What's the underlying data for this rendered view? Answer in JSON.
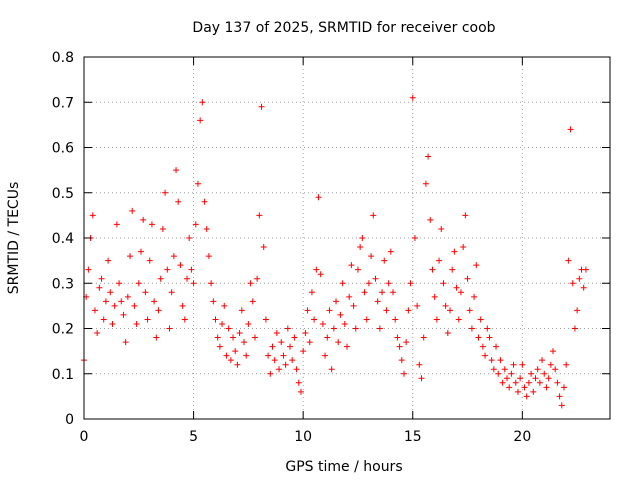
{
  "chart_data": {
    "type": "scatter",
    "title": "Day 137 of 2025, SRMTID for receiver coob",
    "xlabel": "GPS time / hours",
    "ylabel": "SRMTID / TECUs",
    "xlim": [
      0,
      24
    ],
    "ylim": [
      0,
      0.8
    ],
    "xticks": [
      0,
      5,
      10,
      15,
      20
    ],
    "xtick_labels": [
      "0",
      "5",
      "10",
      "15",
      "20"
    ],
    "yticks": [
      0,
      0.1,
      0.2,
      0.3,
      0.4,
      0.5,
      0.6,
      0.7,
      0.8
    ],
    "ytick_labels": [
      "0",
      "0.1",
      "0.2",
      "0.3",
      "0.4",
      "0.5",
      "0.6",
      "0.7",
      "0.8"
    ],
    "grid": true,
    "marker": "+",
    "color": "#ff0000",
    "series": [
      {
        "name": "SRMTID",
        "x": [
          0.0,
          0.1,
          0.2,
          0.3,
          0.4,
          0.5,
          0.6,
          0.7,
          0.8,
          0.9,
          1.0,
          1.1,
          1.2,
          1.3,
          1.4,
          1.5,
          1.6,
          1.7,
          1.8,
          1.9,
          2.0,
          2.1,
          2.2,
          2.3,
          2.4,
          2.5,
          2.6,
          2.7,
          2.8,
          2.9,
          3.0,
          3.1,
          3.2,
          3.3,
          3.4,
          3.5,
          3.6,
          3.7,
          3.8,
          3.9,
          4.0,
          4.1,
          4.2,
          4.3,
          4.4,
          4.5,
          4.6,
          4.7,
          4.8,
          4.9,
          5.0,
          5.1,
          5.2,
          5.3,
          5.4,
          5.5,
          5.6,
          5.7,
          5.8,
          5.9,
          6.0,
          6.1,
          6.2,
          6.3,
          6.4,
          6.5,
          6.6,
          6.7,
          6.8,
          6.9,
          7.0,
          7.1,
          7.2,
          7.3,
          7.4,
          7.5,
          7.6,
          7.7,
          7.8,
          7.9,
          8.0,
          8.1,
          8.2,
          8.3,
          8.4,
          8.5,
          8.6,
          8.7,
          8.8,
          8.9,
          9.0,
          9.1,
          9.2,
          9.3,
          9.4,
          9.5,
          9.6,
          9.7,
          9.8,
          9.9,
          10.0,
          10.1,
          10.2,
          10.3,
          10.4,
          10.5,
          10.6,
          10.7,
          10.8,
          10.9,
          11.0,
          11.1,
          11.2,
          11.3,
          11.4,
          11.5,
          11.6,
          11.7,
          11.8,
          11.9,
          12.0,
          12.1,
          12.2,
          12.3,
          12.4,
          12.5,
          12.6,
          12.7,
          12.8,
          12.9,
          13.0,
          13.1,
          13.2,
          13.3,
          13.4,
          13.5,
          13.6,
          13.7,
          13.8,
          13.9,
          14.0,
          14.1,
          14.2,
          14.3,
          14.4,
          14.5,
          14.6,
          14.7,
          14.8,
          14.9,
          15.0,
          15.1,
          15.2,
          15.3,
          15.4,
          15.5,
          15.6,
          15.7,
          15.8,
          15.9,
          16.0,
          16.1,
          16.2,
          16.3,
          16.4,
          16.5,
          16.6,
          16.7,
          16.8,
          16.9,
          17.0,
          17.1,
          17.2,
          17.3,
          17.4,
          17.5,
          17.6,
          17.7,
          17.8,
          17.9,
          18.0,
          18.1,
          18.2,
          18.3,
          18.4,
          18.5,
          18.6,
          18.7,
          18.8,
          18.9,
          19.0,
          19.1,
          19.2,
          19.3,
          19.4,
          19.5,
          19.6,
          19.7,
          19.8,
          19.9,
          20.0,
          20.1,
          20.2,
          20.3,
          20.4,
          20.5,
          20.6,
          20.7,
          20.8,
          20.9,
          21.0,
          21.1,
          21.2,
          21.3,
          21.4,
          21.5,
          21.6,
          21.7,
          21.8,
          21.9,
          22.0,
          22.1,
          22.2,
          22.3,
          22.4,
          22.5,
          22.6,
          22.7,
          22.8,
          22.9
        ],
        "y": [
          0.13,
          0.27,
          0.33,
          0.4,
          0.45,
          0.24,
          0.19,
          0.29,
          0.31,
          0.22,
          0.26,
          0.35,
          0.28,
          0.21,
          0.25,
          0.43,
          0.3,
          0.26,
          0.23,
          0.17,
          0.27,
          0.36,
          0.46,
          0.25,
          0.21,
          0.3,
          0.37,
          0.44,
          0.28,
          0.22,
          0.35,
          0.43,
          0.26,
          0.18,
          0.24,
          0.31,
          0.42,
          0.5,
          0.33,
          0.2,
          0.28,
          0.36,
          0.55,
          0.48,
          0.34,
          0.25,
          0.22,
          0.31,
          0.4,
          0.33,
          0.3,
          0.43,
          0.52,
          0.66,
          0.7,
          0.48,
          0.42,
          0.36,
          0.3,
          0.26,
          0.22,
          0.18,
          0.16,
          0.21,
          0.25,
          0.14,
          0.2,
          0.13,
          0.18,
          0.15,
          0.12,
          0.19,
          0.24,
          0.17,
          0.14,
          0.21,
          0.3,
          0.26,
          0.18,
          0.31,
          0.45,
          0.69,
          0.38,
          0.22,
          0.14,
          0.1,
          0.16,
          0.13,
          0.19,
          0.11,
          0.17,
          0.14,
          0.12,
          0.2,
          0.16,
          0.13,
          0.18,
          0.11,
          0.08,
          0.06,
          0.15,
          0.19,
          0.24,
          0.17,
          0.28,
          0.22,
          0.33,
          0.49,
          0.32,
          0.21,
          0.14,
          0.18,
          0.24,
          0.11,
          0.2,
          0.26,
          0.17,
          0.23,
          0.3,
          0.21,
          0.16,
          0.27,
          0.34,
          0.25,
          0.2,
          0.33,
          0.38,
          0.4,
          0.28,
          0.22,
          0.3,
          0.36,
          0.45,
          0.31,
          0.26,
          0.2,
          0.28,
          0.35,
          0.24,
          0.3,
          0.37,
          0.28,
          0.22,
          0.18,
          0.16,
          0.13,
          0.1,
          0.17,
          0.24,
          0.3,
          0.71,
          0.4,
          0.25,
          0.12,
          0.09,
          0.18,
          0.52,
          0.58,
          0.44,
          0.33,
          0.27,
          0.22,
          0.35,
          0.42,
          0.3,
          0.25,
          0.19,
          0.24,
          0.33,
          0.37,
          0.29,
          0.22,
          0.28,
          0.38,
          0.45,
          0.31,
          0.24,
          0.2,
          0.27,
          0.34,
          0.18,
          0.22,
          0.16,
          0.14,
          0.2,
          0.18,
          0.13,
          0.11,
          0.16,
          0.1,
          0.13,
          0.08,
          0.11,
          0.09,
          0.07,
          0.1,
          0.12,
          0.08,
          0.06,
          0.09,
          0.12,
          0.07,
          0.05,
          0.08,
          0.1,
          0.06,
          0.09,
          0.11,
          0.08,
          0.13,
          0.1,
          0.07,
          0.09,
          0.12,
          0.15,
          0.11,
          0.08,
          0.05,
          0.03,
          0.07,
          0.12,
          0.35,
          0.64,
          0.3,
          0.2,
          0.24,
          0.31,
          0.33,
          0.29,
          0.33
        ]
      }
    ]
  }
}
